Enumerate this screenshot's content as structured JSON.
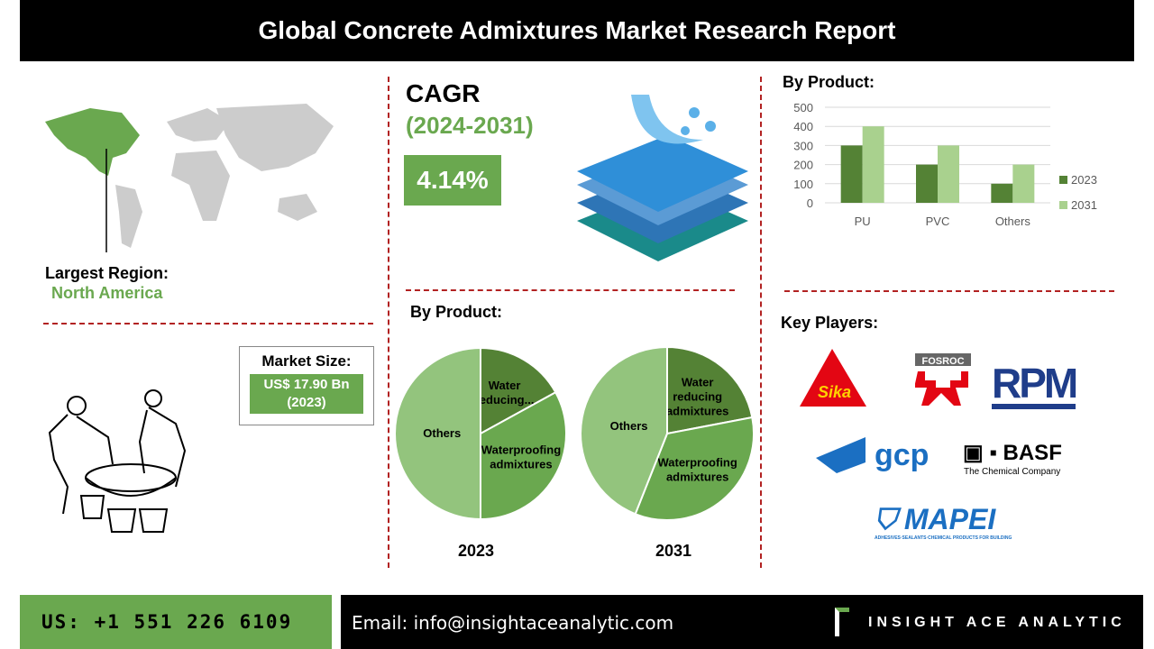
{
  "header": {
    "title": "Global Concrete Admixtures Market Research Report"
  },
  "region": {
    "label": "Largest Region:",
    "value": "North America"
  },
  "market_size": {
    "label": "Market Size:",
    "value": "US$ 17.90 Bn",
    "year": "(2023)"
  },
  "cagr": {
    "label": "CAGR",
    "period": "(2024-2031)",
    "value": "4.14%"
  },
  "pie_section": {
    "title": "By Product:"
  },
  "bar_section": {
    "title": "By Product:"
  },
  "key_players": {
    "title": "Key Players:",
    "logos": [
      "Sika",
      "FOSROC",
      "RPM",
      "gcp",
      "BASF",
      "MAPEI"
    ],
    "basf_tagline": "The Chemical Company",
    "mapei_tagline": "ADHESIVES·SEALANTS·CHEMICAL PRODUCTS FOR BUILDING"
  },
  "footer": {
    "phone": "US: +1 551 226 6109",
    "email": "Email: info@insightaceanalytic.com",
    "brand": "INSIGHT ACE ANALYTIC"
  },
  "colors": {
    "green": "#6aa84f",
    "dark_green": "#548235",
    "light_green": "#a9d18e",
    "pie_light": "#93c47d",
    "red_dash": "#b22222"
  },
  "chart_data": [
    {
      "type": "bar",
      "title": "By Product:",
      "categories": [
        "PU",
        "PVC",
        "Others"
      ],
      "series": [
        {
          "name": "2023",
          "values": [
            300,
            200,
            100
          ]
        },
        {
          "name": "2031",
          "values": [
            400,
            300,
            200
          ]
        }
      ],
      "ylim": [
        0,
        500
      ],
      "yticks": [
        "0",
        "100",
        "200",
        "300",
        "400",
        "500"
      ],
      "legend": "right",
      "grid": true
    },
    {
      "type": "pie",
      "title": "2023",
      "labels": [
        "Water reducing...",
        "Waterproofing admixtures",
        "Others"
      ],
      "values": [
        17,
        33,
        50
      ]
    },
    {
      "type": "pie",
      "title": "2031",
      "labels": [
        "Water reducing admixtures",
        "Waterproofing admixtures",
        "Others"
      ],
      "values": [
        22,
        34,
        44
      ]
    }
  ]
}
